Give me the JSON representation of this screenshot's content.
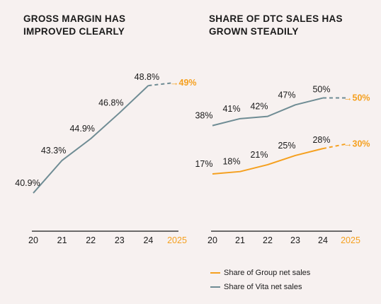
{
  "colors": {
    "vita": "#6f8c94",
    "group": "#f5a01f",
    "axis": "#1a1a1a",
    "text": "#1a1a1a",
    "forecast_label": "#f5a01f"
  },
  "chart_data": [
    {
      "type": "line",
      "title": "GROSS MARGIN HAS\nIMPROVED CLEARLY",
      "categories": [
        "20",
        "21",
        "22",
        "23",
        "24",
        "2025"
      ],
      "series": [
        {
          "color_key": "vita",
          "x": [
            "20",
            "21",
            "22",
            "23",
            "24"
          ],
          "values": [
            40.9,
            43.3,
            44.9,
            46.8,
            48.8
          ],
          "labels": [
            "40.9%",
            "43.3%",
            "44.9%",
            "46.8%",
            "48.8%"
          ],
          "forecast": {
            "x": "2025",
            "value": 49,
            "label": "→49%",
            "color_key": "group"
          }
        }
      ],
      "ylim": [
        39.5,
        50
      ],
      "grid": false,
      "xlabel": "",
      "ylabel": ""
    },
    {
      "type": "line",
      "title": "SHARE OF DTC SALES HAS\nGROWN STEADILY",
      "categories": [
        "20",
        "21",
        "22",
        "23",
        "24",
        "2025"
      ],
      "series": [
        {
          "name": "Share of Vita net sales",
          "color_key": "vita",
          "x": [
            "20",
            "21",
            "22",
            "23",
            "24"
          ],
          "values": [
            38,
            41,
            42,
            47,
            50
          ],
          "labels": [
            "38%",
            "41%",
            "42%",
            "47%",
            "50%"
          ],
          "forecast": {
            "x": "2025",
            "value": 50,
            "label": "→50%",
            "color_key": "group"
          }
        },
        {
          "name": "Share of Group net sales",
          "color_key": "group",
          "x": [
            "20",
            "21",
            "22",
            "23",
            "24"
          ],
          "values": [
            17,
            18,
            21,
            25,
            28
          ],
          "labels": [
            "17%",
            "18%",
            "21%",
            "25%",
            "28%"
          ],
          "forecast": {
            "x": "2025",
            "value": 30,
            "label": "→30%",
            "color_key": "group"
          }
        }
      ],
      "ylim": [
        5,
        60
      ],
      "grid": false,
      "xlabel": "",
      "ylabel": ""
    }
  ],
  "legend": [
    {
      "label": "Share of Group net sales",
      "color_key": "group"
    },
    {
      "label": "Share of Vita net sales",
      "color_key": "vita"
    }
  ]
}
